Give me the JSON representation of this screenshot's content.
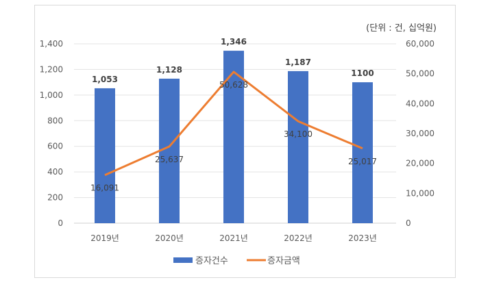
{
  "chart_data": {
    "type": "bar",
    "unit_note": "(단위 : 건, 십억원)",
    "categories": [
      "2019년",
      "2020년",
      "2021년",
      "2022년",
      "2023년"
    ],
    "series": [
      {
        "name": "증자건수",
        "type": "bar",
        "axis": "left",
        "color": "#4472C4",
        "values": [
          1053,
          1128,
          1346,
          1187,
          1100
        ],
        "labels": [
          "1,053",
          "1,128",
          "1,346",
          "1,187",
          "1100"
        ]
      },
      {
        "name": "증자금액",
        "type": "line",
        "axis": "right",
        "color": "#ED7D31",
        "values": [
          16091,
          25637,
          50628,
          34100,
          25017
        ],
        "labels": [
          "16,091",
          "25,637",
          "50,628",
          "34,100",
          "25,017"
        ]
      }
    ],
    "left_axis": {
      "ylim": [
        0,
        1400
      ],
      "ticks": [
        "0",
        "200",
        "400",
        "600",
        "800",
        "1,000",
        "1,200",
        "1,400"
      ]
    },
    "right_axis": {
      "ylim": [
        0,
        60000
      ],
      "ticks": [
        "0",
        "10,000",
        "20,000",
        "30,000",
        "40,000",
        "50,000",
        "60,000"
      ]
    },
    "grid": true,
    "legend": "bottom"
  }
}
